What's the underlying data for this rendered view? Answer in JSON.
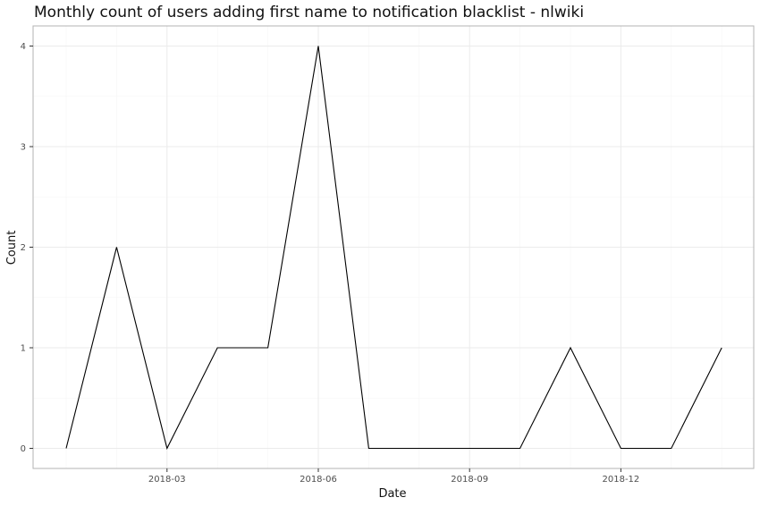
{
  "chart_data": {
    "type": "line",
    "title": "Monthly count of users adding first name to notification blacklist - nlwiki",
    "xlabel": "Date",
    "ylabel": "Count",
    "x": [
      "2018-01",
      "2018-02",
      "2018-03",
      "2018-04",
      "2018-05",
      "2018-06",
      "2018-07",
      "2018-08",
      "2018-09",
      "2018-10",
      "2018-11",
      "2018-12",
      "2019-01",
      "2019-02"
    ],
    "series": [
      {
        "name": "Count",
        "values": [
          0,
          2,
          0,
          1,
          1,
          4,
          0,
          0,
          0,
          0,
          1,
          0,
          0,
          1
        ]
      }
    ],
    "x_tick_labels": [
      "2018-03",
      "2018-06",
      "2018-09",
      "2018-12"
    ],
    "y_ticks": [
      0,
      1,
      2,
      3,
      4
    ],
    "ylim": [
      -0.2,
      4.2
    ],
    "grid": true,
    "colors": {
      "line": "#000000",
      "grid_major": "#ebebeb",
      "grid_minor": "#f5f5f5",
      "panel_border": "#b3b3b3"
    }
  }
}
